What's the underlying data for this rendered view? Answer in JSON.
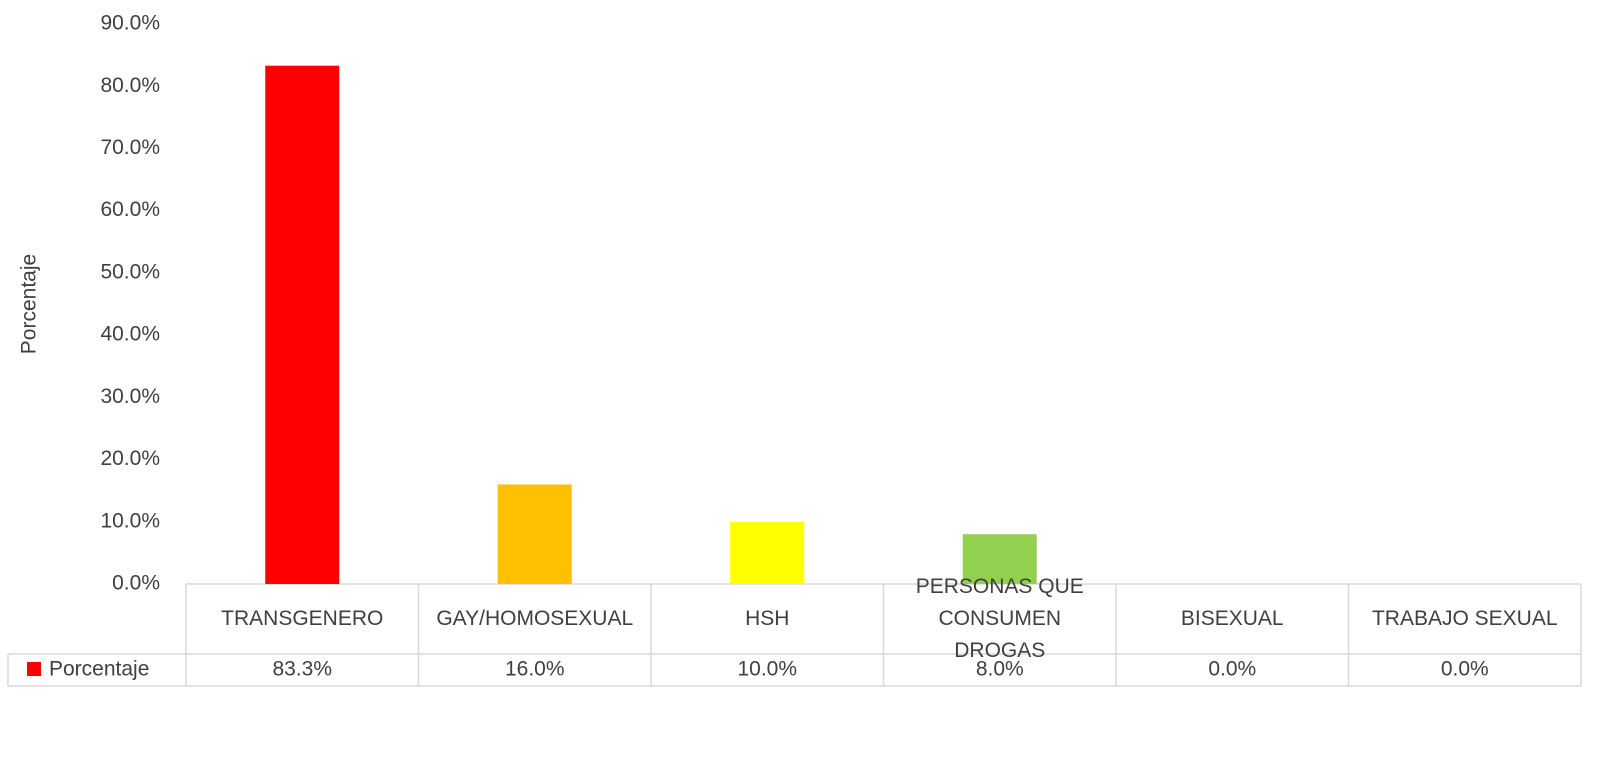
{
  "chart_data": {
    "type": "bar",
    "y_axis_label": "Porcentaje",
    "categories": [
      "TRANSGENERO",
      "GAY/HOMOSEXUAL",
      "HSH",
      "PERSONAS QUE CONSUMEN DROGAS",
      "BISEXUAL",
      "TRABAJO SEXUAL"
    ],
    "series": [
      {
        "name": "Porcentaje",
        "color": "#ff0000",
        "point_colors": [
          "#ff0000",
          "#ffc000",
          "#ffff00",
          "#92d050",
          "#5b9bd5",
          "#a5a5a5"
        ],
        "values": [
          83.3,
          16.0,
          10.0,
          8.0,
          0.0,
          0.0
        ],
        "value_labels": [
          "83.3%",
          "16.0%",
          "10.0%",
          "8.0%",
          "0.0%",
          "0.0%"
        ]
      }
    ],
    "ylim": [
      0,
      90
    ],
    "yticks": [
      {
        "value": 0,
        "label": "0.0%"
      },
      {
        "value": 10,
        "label": "10.0%"
      },
      {
        "value": 20,
        "label": "20.0%"
      },
      {
        "value": 30,
        "label": "30.0%"
      },
      {
        "value": 40,
        "label": "40.0%"
      },
      {
        "value": 50,
        "label": "50.0%"
      },
      {
        "value": 60,
        "label": "60.0%"
      },
      {
        "value": 70,
        "label": "70.0%"
      },
      {
        "value": 80,
        "label": "80.0%"
      },
      {
        "value": 90,
        "label": "90.0%"
      }
    ],
    "grid": false,
    "data_table": true
  }
}
